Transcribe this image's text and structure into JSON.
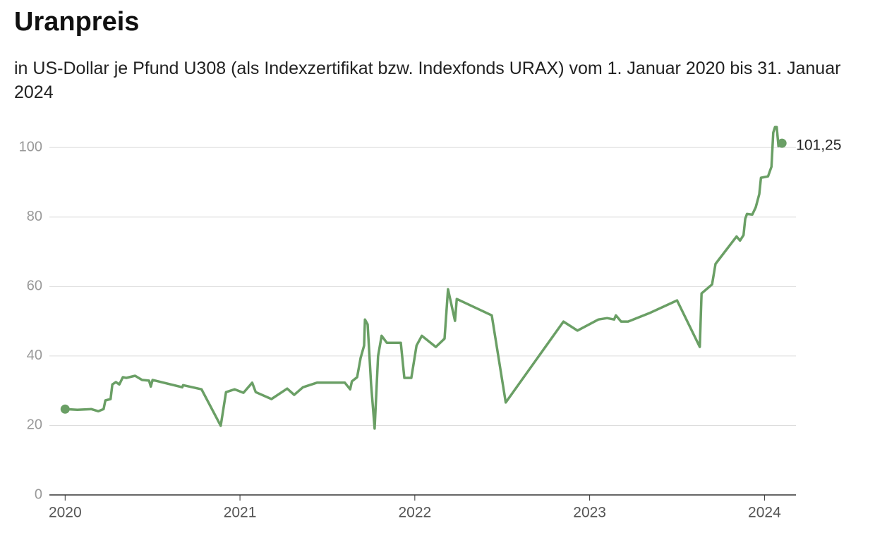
{
  "chart_data": {
    "type": "line",
    "title": "Uranpreis",
    "subtitle": "in US-Dollar je Pfund U308 (als Indexzertifikat bzw. Indexfonds URAX) vom 1. Januar 2020 bis 31. Januar 2024",
    "color": "#6a9f65",
    "x": [
      2020.0,
      2020.07,
      2020.15,
      2020.19,
      2020.22,
      2020.23,
      2020.26,
      2020.27,
      2020.29,
      2020.31,
      2020.33,
      2020.35,
      2020.4,
      2020.44,
      2020.48,
      2020.49,
      2020.5,
      2020.67,
      2020.675,
      2020.78,
      2020.89,
      2020.92,
      2020.97,
      2021.02,
      2021.07,
      2021.09,
      2021.18,
      2021.27,
      2021.31,
      2021.36,
      2021.44,
      2021.6,
      2021.63,
      2021.64,
      2021.67,
      2021.69,
      2021.71,
      2021.715,
      2021.73,
      2021.75,
      2021.77,
      2021.79,
      2021.81,
      2021.84,
      2021.92,
      2021.94,
      2021.98,
      2022.01,
      2022.04,
      2022.12,
      2022.17,
      2022.19,
      2022.23,
      2022.24,
      2022.44,
      2022.52,
      2022.85,
      2022.93,
      2023.05,
      2023.1,
      2023.14,
      2023.15,
      2023.18,
      2023.22,
      2023.34,
      2023.5,
      2023.63,
      2023.64,
      2023.7,
      2023.72,
      2023.84,
      2023.86,
      2023.88,
      2023.89,
      2023.9,
      2023.93,
      2023.95,
      2023.97,
      2023.98,
      2024.02,
      2024.04,
      2024.05,
      2024.06,
      2024.07,
      2024.08,
      2024.1
    ],
    "values": [
      24.7,
      24.5,
      24.7,
      24.1,
      24.7,
      27.2,
      27.6,
      31.8,
      32.5,
      31.8,
      33.9,
      33.7,
      34.3,
      33.1,
      32.9,
      31.2,
      33.1,
      31.0,
      31.6,
      30.4,
      19.9,
      29.6,
      30.4,
      29.4,
      32.3,
      29.6,
      27.6,
      30.6,
      28.8,
      31.0,
      32.3,
      32.3,
      30.4,
      32.7,
      33.9,
      39.4,
      43.0,
      50.5,
      49.1,
      31.8,
      19.1,
      40.0,
      45.8,
      43.8,
      43.8,
      33.7,
      33.7,
      43.0,
      45.8,
      42.6,
      45.0,
      59.2,
      50.1,
      56.4,
      51.7,
      26.6,
      49.9,
      47.3,
      50.5,
      50.9,
      50.5,
      51.7,
      49.9,
      49.9,
      52.3,
      56.0,
      42.6,
      58.0,
      60.6,
      66.5,
      74.4,
      73.2,
      74.8,
      79.5,
      80.9,
      80.7,
      82.8,
      86.6,
      91.3,
      91.7,
      94.5,
      104.3,
      105.9,
      105.9,
      100.4,
      101.25
    ],
    "value_labels": [
      null,
      null,
      null,
      null,
      null,
      null,
      null,
      null,
      null,
      null,
      null,
      null,
      null,
      null,
      null,
      null,
      null,
      null,
      null,
      null,
      null,
      null,
      null,
      null,
      null,
      null,
      null,
      null,
      null,
      null,
      null,
      null,
      null,
      null,
      null,
      null,
      null,
      null,
      null,
      null,
      null,
      null,
      null,
      null,
      null,
      null,
      null,
      null,
      null,
      null,
      null,
      null,
      null,
      null,
      null,
      null,
      null,
      null,
      null,
      null,
      null,
      null,
      null,
      null,
      null,
      null,
      null,
      null,
      null,
      null,
      null,
      null,
      null,
      null,
      null,
      null,
      null,
      null,
      null,
      null,
      null,
      null,
      null,
      null,
      null,
      "101,25"
    ],
    "xlim": [
      2019.91,
      2024.18
    ],
    "xticks": [
      2020,
      2021,
      2022,
      2023,
      2024
    ],
    "ylim": [
      0,
      110
    ],
    "yticks": [
      0,
      20,
      40,
      60,
      80,
      100
    ],
    "grid": true
  }
}
